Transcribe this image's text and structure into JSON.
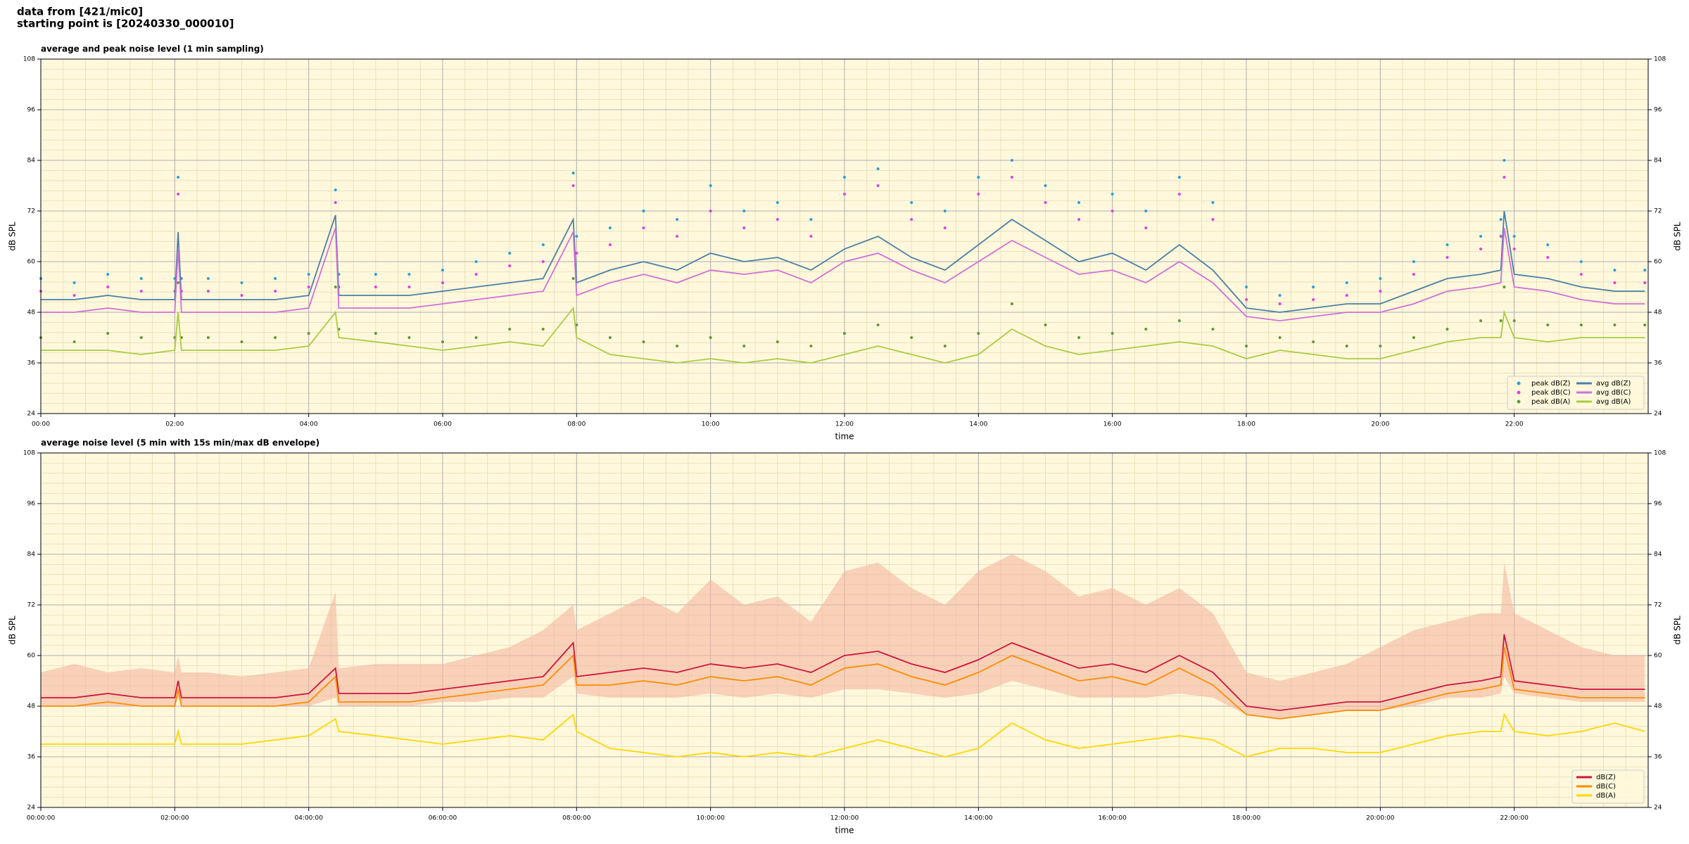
{
  "header": {
    "lines": [
      "data from [421/mic0]",
      "starting point is [20240330_000010]"
    ]
  },
  "chart_data": [
    {
      "type": "line",
      "title": "average and peak noise level (1 min sampling)",
      "xlabel": "time",
      "ylabel": "dB SPL",
      "y2label": "dB SPL",
      "x": [
        0,
        0.5,
        1,
        1.5,
        2,
        2.05,
        2.1,
        2.5,
        3,
        3.5,
        4,
        4.4,
        4.45,
        5,
        5.5,
        6,
        6.5,
        7,
        7.5,
        7.95,
        8,
        8.5,
        9,
        9.5,
        10,
        10.5,
        11,
        11.5,
        12,
        12.5,
        13,
        13.5,
        14,
        14.5,
        15,
        15.5,
        16,
        16.5,
        17,
        17.5,
        18,
        18.5,
        19,
        19.5,
        20,
        20.5,
        21,
        21.5,
        21.8,
        21.85,
        22,
        22.5,
        23,
        23.5,
        23.95
      ],
      "xlim": [
        0,
        24
      ],
      "xticks": [
        {
          "value": 0,
          "label": "00:00"
        },
        {
          "value": 2,
          "label": "02:00"
        },
        {
          "value": 4,
          "label": "04:00"
        },
        {
          "value": 6,
          "label": "06:00"
        },
        {
          "value": 8,
          "label": "08:00"
        },
        {
          "value": 10,
          "label": "10:00"
        },
        {
          "value": 12,
          "label": "12:00"
        },
        {
          "value": 14,
          "label": "14:00"
        },
        {
          "value": 16,
          "label": "16:00"
        },
        {
          "value": 18,
          "label": "18:00"
        },
        {
          "value": 20,
          "label": "20:00"
        },
        {
          "value": 22,
          "label": "22:00"
        }
      ],
      "ylim": [
        24,
        108
      ],
      "yticks": [
        24,
        36,
        48,
        60,
        72,
        84,
        96,
        108
      ],
      "y2lim": [
        24,
        108
      ],
      "y2ticks": [
        24,
        36,
        48,
        60,
        72,
        84,
        96,
        108
      ],
      "grid": true,
      "minor_grid": true,
      "legend": "lower right",
      "legend_columns": 2,
      "series": [
        {
          "name": "peak dB(Z)",
          "style": "dots",
          "color": "#2a9fd8",
          "values": [
            56,
            55,
            57,
            56,
            56,
            80,
            56,
            56,
            55,
            56,
            57,
            77,
            57,
            57,
            57,
            58,
            60,
            62,
            64,
            81,
            66,
            68,
            72,
            70,
            78,
            72,
            74,
            70,
            80,
            82,
            74,
            72,
            80,
            84,
            78,
            74,
            76,
            72,
            80,
            74,
            54,
            52,
            54,
            55,
            56,
            60,
            64,
            66,
            70,
            84,
            66,
            64,
            60,
            58,
            58
          ]
        },
        {
          "name": "peak dB(C)",
          "style": "dots",
          "color": "#e040e0",
          "values": [
            53,
            52,
            54,
            53,
            53,
            76,
            53,
            53,
            52,
            53,
            54,
            74,
            54,
            54,
            54,
            55,
            57,
            59,
            60,
            78,
            62,
            64,
            68,
            66,
            72,
            68,
            70,
            66,
            76,
            78,
            70,
            68,
            76,
            80,
            74,
            70,
            72,
            68,
            76,
            70,
            51,
            50,
            51,
            52,
            53,
            57,
            61,
            63,
            66,
            80,
            63,
            61,
            57,
            55,
            55
          ]
        },
        {
          "name": "peak dB(A)",
          "style": "dots",
          "color": "#5a9a3a",
          "values": [
            42,
            41,
            43,
            42,
            42,
            55,
            42,
            42,
            41,
            42,
            43,
            54,
            44,
            43,
            42,
            41,
            42,
            44,
            44,
            56,
            45,
            42,
            41,
            40,
            42,
            40,
            41,
            40,
            43,
            45,
            42,
            40,
            43,
            50,
            45,
            42,
            43,
            44,
            46,
            44,
            40,
            42,
            41,
            40,
            40,
            42,
            44,
            46,
            46,
            54,
            46,
            45,
            45,
            45,
            45
          ]
        },
        {
          "name": "avg dB(Z)",
          "style": "line",
          "color": "#4a7fa8",
          "values": [
            51,
            51,
            52,
            51,
            51,
            67,
            51,
            51,
            51,
            51,
            52,
            71,
            52,
            52,
            52,
            53,
            54,
            55,
            56,
            70,
            55,
            58,
            60,
            58,
            62,
            60,
            61,
            58,
            63,
            66,
            61,
            58,
            64,
            70,
            65,
            60,
            62,
            58,
            64,
            58,
            49,
            48,
            49,
            50,
            50,
            53,
            56,
            57,
            58,
            72,
            57,
            56,
            54,
            53,
            53
          ]
        },
        {
          "name": "avg dB(C)",
          "style": "line",
          "color": "#d070d8",
          "values": [
            48,
            48,
            49,
            48,
            48,
            63,
            48,
            48,
            48,
            48,
            49,
            68,
            49,
            49,
            49,
            50,
            51,
            52,
            53,
            67,
            52,
            55,
            57,
            55,
            58,
            57,
            58,
            55,
            60,
            62,
            58,
            55,
            60,
            65,
            61,
            57,
            58,
            55,
            60,
            55,
            47,
            46,
            47,
            48,
            48,
            50,
            53,
            54,
            55,
            68,
            54,
            53,
            51,
            50,
            50
          ]
        },
        {
          "name": "avg dB(A)",
          "style": "line",
          "color": "#a8cc40",
          "values": [
            39,
            39,
            39,
            38,
            39,
            48,
            39,
            39,
            39,
            39,
            40,
            48,
            42,
            41,
            40,
            39,
            40,
            41,
            40,
            49,
            42,
            38,
            37,
            36,
            37,
            36,
            37,
            36,
            38,
            40,
            38,
            36,
            38,
            44,
            40,
            38,
            39,
            40,
            41,
            40,
            37,
            39,
            38,
            37,
            37,
            39,
            41,
            42,
            42,
            48,
            42,
            41,
            42,
            42,
            42
          ]
        }
      ]
    },
    {
      "type": "line",
      "title": "average noise level (5 min with 15s min/max dB envelope)",
      "xlabel": "time",
      "ylabel": "dB SPL",
      "y2label": "dB SPL",
      "x": [
        0,
        0.5,
        1,
        1.5,
        2,
        2.05,
        2.1,
        2.5,
        3,
        3.5,
        4,
        4.4,
        4.45,
        5,
        5.5,
        6,
        6.5,
        7,
        7.5,
        7.95,
        8,
        8.5,
        9,
        9.5,
        10,
        10.5,
        11,
        11.5,
        12,
        12.5,
        13,
        13.5,
        14,
        14.5,
        15,
        15.5,
        16,
        16.5,
        17,
        17.5,
        18,
        18.5,
        19,
        19.5,
        20,
        20.5,
        21,
        21.5,
        21.8,
        21.85,
        22,
        22.5,
        23,
        23.5,
        23.95
      ],
      "xlim": [
        0,
        24
      ],
      "xticks": [
        {
          "value": 0,
          "label": "00:00:00"
        },
        {
          "value": 2,
          "label": "02:00:00"
        },
        {
          "value": 4,
          "label": "04:00:00"
        },
        {
          "value": 6,
          "label": "06:00:00"
        },
        {
          "value": 8,
          "label": "08:00:00"
        },
        {
          "value": 10,
          "label": "10:00:00"
        },
        {
          "value": 12,
          "label": "12:00:00"
        },
        {
          "value": 14,
          "label": "14:00:00"
        },
        {
          "value": 16,
          "label": "16:00:00"
        },
        {
          "value": 18,
          "label": "18:00:00"
        },
        {
          "value": 20,
          "label": "20:00:00"
        },
        {
          "value": 22,
          "label": "22:00:00"
        }
      ],
      "ylim": [
        24,
        108
      ],
      "yticks": [
        24,
        36,
        48,
        60,
        72,
        84,
        96,
        108
      ],
      "y2lim": [
        24,
        108
      ],
      "y2ticks": [
        24,
        36,
        48,
        60,
        72,
        84,
        96,
        108
      ],
      "grid": true,
      "minor_grid": true,
      "legend": "lower right",
      "legend_columns": 1,
      "envelope": {
        "color": "#f4b8a0",
        "upper": [
          56,
          58,
          56,
          57,
          56,
          60,
          56,
          56,
          55,
          56,
          57,
          75,
          57,
          58,
          58,
          58,
          60,
          62,
          66,
          72,
          66,
          70,
          74,
          70,
          78,
          72,
          74,
          68,
          80,
          82,
          76,
          72,
          80,
          84,
          80,
          74,
          76,
          72,
          76,
          70,
          56,
          54,
          56,
          58,
          62,
          66,
          68,
          70,
          70,
          82,
          70,
          66,
          62,
          60,
          60
        ],
        "lower": [
          48,
          48,
          48,
          48,
          48,
          50,
          48,
          48,
          48,
          48,
          48,
          50,
          48,
          48,
          48,
          49,
          49,
          50,
          50,
          55,
          51,
          50,
          50,
          50,
          51,
          50,
          51,
          50,
          52,
          52,
          51,
          50,
          51,
          54,
          52,
          50,
          50,
          50,
          51,
          50,
          46,
          45,
          46,
          47,
          47,
          48,
          50,
          50,
          51,
          55,
          51,
          50,
          49,
          49,
          49
        ]
      },
      "series": [
        {
          "name": "dB(Z)",
          "style": "line",
          "color": "#d0143c",
          "values": [
            50,
            50,
            51,
            50,
            50,
            54,
            50,
            50,
            50,
            50,
            51,
            57,
            51,
            51,
            51,
            52,
            53,
            54,
            55,
            63,
            55,
            56,
            57,
            56,
            58,
            57,
            58,
            56,
            60,
            61,
            58,
            56,
            59,
            63,
            60,
            57,
            58,
            56,
            60,
            56,
            48,
            47,
            48,
            49,
            49,
            51,
            53,
            54,
            55,
            65,
            54,
            53,
            52,
            52,
            52
          ]
        },
        {
          "name": "dB(C)",
          "style": "line",
          "color": "#ff8c00",
          "values": [
            48,
            48,
            49,
            48,
            48,
            52,
            48,
            48,
            48,
            48,
            49,
            55,
            49,
            49,
            49,
            50,
            51,
            52,
            53,
            60,
            53,
            53,
            54,
            53,
            55,
            54,
            55,
            53,
            57,
            58,
            55,
            53,
            56,
            60,
            57,
            54,
            55,
            53,
            57,
            53,
            46,
            45,
            46,
            47,
            47,
            49,
            51,
            52,
            53,
            62,
            52,
            51,
            50,
            50,
            50
          ]
        },
        {
          "name": "dB(A)",
          "style": "line",
          "color": "#ffd700",
          "values": [
            39,
            39,
            39,
            39,
            39,
            42,
            39,
            39,
            39,
            40,
            41,
            45,
            42,
            41,
            40,
            39,
            40,
            41,
            40,
            46,
            42,
            38,
            37,
            36,
            37,
            36,
            37,
            36,
            38,
            40,
            38,
            36,
            38,
            44,
            40,
            38,
            39,
            40,
            41,
            40,
            36,
            38,
            38,
            37,
            37,
            39,
            41,
            42,
            42,
            46,
            42,
            41,
            42,
            44,
            42
          ]
        }
      ]
    }
  ]
}
